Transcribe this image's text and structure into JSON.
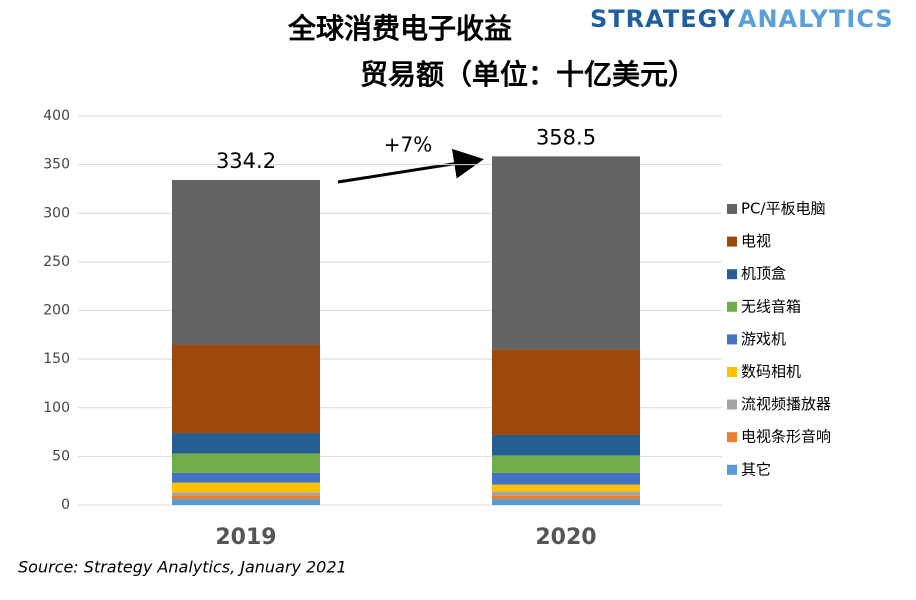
{
  "chart_data": {
    "type": "stacked_bar",
    "title": "全球消费电子收益",
    "subtitle": "贸易额（单位：十亿美元）",
    "logo": [
      "STRATEGY",
      "ANALYTICS"
    ],
    "source": "Source: Strategy Analytics, January 2021",
    "annotation": "+7%",
    "categories": [
      "2019",
      "2020"
    ],
    "totals": [
      334.2,
      358.5
    ],
    "series": [
      {
        "name": "其它",
        "color": "#5b9bd5",
        "values": [
          6,
          6
        ]
      },
      {
        "name": "电视条形音响",
        "color": "#ed7d31",
        "values": [
          4,
          4
        ]
      },
      {
        "name": "流视频播放器",
        "color": "#a5a5a5",
        "values": [
          3,
          4
        ]
      },
      {
        "name": "数码相机",
        "color": "#ffc000",
        "values": [
          10,
          7
        ]
      },
      {
        "name": "游戏机",
        "color": "#4472c4",
        "values": [
          10,
          12
        ]
      },
      {
        "name": "无线音箱",
        "color": "#70ad47",
        "values": [
          20,
          18
        ]
      },
      {
        "name": "机顶盒",
        "color": "#255e91",
        "values": [
          21,
          21
        ]
      },
      {
        "name": "电视",
        "color": "#9e480e",
        "values": [
          91,
          88
        ]
      },
      {
        "name": "PC/平板电脑",
        "color": "#636363",
        "values": [
          169.2,
          198.5
        ]
      }
    ],
    "ylim": [
      0,
      400
    ],
    "yticks": [
      0,
      50,
      100,
      150,
      200,
      250,
      300,
      350,
      400
    ],
    "grid": true
  }
}
